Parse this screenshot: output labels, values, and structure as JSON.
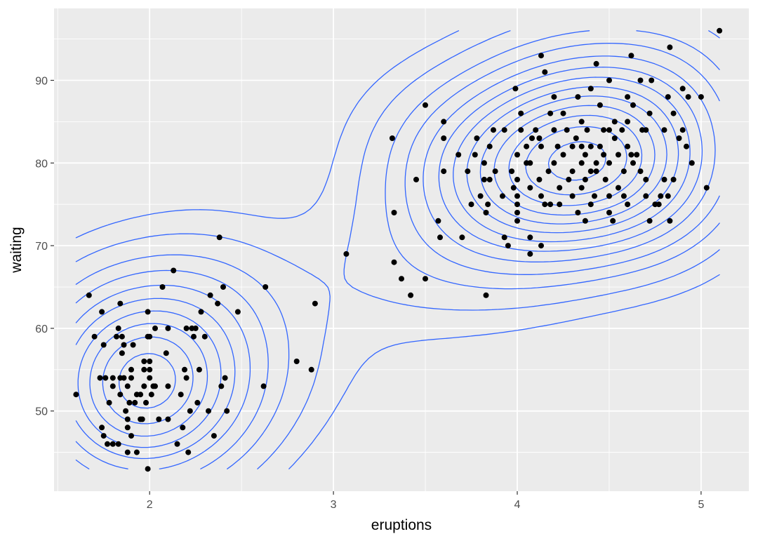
{
  "chart_data": {
    "type": "scatter",
    "title": "",
    "xlabel": "eruptions",
    "ylabel": "waiting",
    "xlim": [
      1.48,
      5.26
    ],
    "ylim": [
      40.3,
      98.7
    ],
    "x_ticks": [
      2,
      3,
      4,
      5
    ],
    "y_ticks": [
      50,
      60,
      70,
      80,
      90
    ],
    "grid": true,
    "legend": "none",
    "colors": {
      "points": "#000000",
      "contours": "#3366FF",
      "panel": "#EBEBEB",
      "grid": "#FFFFFF"
    },
    "density_peaks": [
      {
        "x": 4.35,
        "y": 80.2
      },
      {
        "x": 1.98,
        "y": 53.5
      }
    ],
    "points": [
      [
        1.6,
        52
      ],
      [
        1.67,
        64
      ],
      [
        1.7,
        59
      ],
      [
        1.73,
        54
      ],
      [
        1.74,
        62
      ],
      [
        1.75,
        58
      ],
      [
        1.74,
        48
      ],
      [
        1.75,
        47
      ],
      [
        1.76,
        54
      ],
      [
        1.77,
        46
      ],
      [
        1.78,
        51
      ],
      [
        1.8,
        53
      ],
      [
        1.8,
        54
      ],
      [
        1.8,
        46
      ],
      [
        1.82,
        59
      ],
      [
        1.83,
        60
      ],
      [
        1.83,
        46
      ],
      [
        1.84,
        63
      ],
      [
        1.84,
        52
      ],
      [
        1.84,
        54
      ],
      [
        1.85,
        59
      ],
      [
        1.85,
        57
      ],
      [
        1.86,
        58
      ],
      [
        1.86,
        54
      ],
      [
        1.87,
        50
      ],
      [
        1.88,
        53
      ],
      [
        1.88,
        45
      ],
      [
        1.88,
        48
      ],
      [
        1.88,
        49
      ],
      [
        1.89,
        51
      ],
      [
        1.9,
        55
      ],
      [
        1.9,
        54
      ],
      [
        1.9,
        47
      ],
      [
        1.91,
        58
      ],
      [
        1.92,
        51
      ],
      [
        1.93,
        52
      ],
      [
        1.93,
        45
      ],
      [
        1.95,
        49
      ],
      [
        1.95,
        52
      ],
      [
        1.96,
        49
      ],
      [
        1.97,
        53
      ],
      [
        1.97,
        56
      ],
      [
        1.97,
        55
      ],
      [
        1.98,
        51
      ],
      [
        1.99,
        59
      ],
      [
        1.99,
        62
      ],
      [
        1.99,
        43
      ],
      [
        2.0,
        59
      ],
      [
        2.0,
        56
      ],
      [
        2.0,
        55
      ],
      [
        2.0,
        54
      ],
      [
        2.01,
        52
      ],
      [
        2.02,
        53
      ],
      [
        2.03,
        60
      ],
      [
        2.03,
        53
      ],
      [
        2.05,
        49
      ],
      [
        2.07,
        65
      ],
      [
        2.09,
        57
      ],
      [
        2.1,
        53
      ],
      [
        2.1,
        60
      ],
      [
        2.1,
        49
      ],
      [
        2.13,
        67
      ],
      [
        2.15,
        46
      ],
      [
        2.17,
        52
      ],
      [
        2.18,
        48
      ],
      [
        2.19,
        55
      ],
      [
        2.2,
        54
      ],
      [
        2.2,
        60
      ],
      [
        2.21,
        45
      ],
      [
        2.22,
        50
      ],
      [
        2.23,
        60
      ],
      [
        2.24,
        59
      ],
      [
        2.25,
        60
      ],
      [
        2.26,
        51
      ],
      [
        2.27,
        55
      ],
      [
        2.28,
        62
      ],
      [
        2.3,
        59
      ],
      [
        2.32,
        50
      ],
      [
        2.33,
        64
      ],
      [
        2.35,
        47
      ],
      [
        2.37,
        63
      ],
      [
        2.38,
        71
      ],
      [
        2.39,
        53
      ],
      [
        2.4,
        65
      ],
      [
        2.41,
        54
      ],
      [
        2.42,
        50
      ],
      [
        2.48,
        62
      ],
      [
        2.62,
        53
      ],
      [
        2.63,
        65
      ],
      [
        2.8,
        56
      ],
      [
        2.88,
        55
      ],
      [
        2.9,
        63
      ],
      [
        3.07,
        69
      ],
      [
        3.32,
        83
      ],
      [
        3.33,
        74
      ],
      [
        3.33,
        68
      ],
      [
        3.37,
        66
      ],
      [
        3.42,
        64
      ],
      [
        3.45,
        78
      ],
      [
        3.5,
        66
      ],
      [
        3.5,
        87
      ],
      [
        3.57,
        73
      ],
      [
        3.58,
        71
      ],
      [
        3.6,
        85
      ],
      [
        3.6,
        83
      ],
      [
        3.6,
        79
      ],
      [
        3.68,
        81
      ],
      [
        3.7,
        71
      ],
      [
        3.73,
        79
      ],
      [
        3.75,
        75
      ],
      [
        3.77,
        81
      ],
      [
        3.78,
        83
      ],
      [
        3.8,
        76
      ],
      [
        3.82,
        80
      ],
      [
        3.82,
        78
      ],
      [
        3.83,
        74
      ],
      [
        3.83,
        64
      ],
      [
        3.84,
        75
      ],
      [
        3.85,
        78
      ],
      [
        3.85,
        82
      ],
      [
        3.87,
        84
      ],
      [
        3.88,
        79
      ],
      [
        3.92,
        76
      ],
      [
        3.93,
        71
      ],
      [
        3.93,
        84
      ],
      [
        3.95,
        70
      ],
      [
        3.97,
        79
      ],
      [
        3.98,
        77
      ],
      [
        3.99,
        89
      ],
      [
        4.0,
        76
      ],
      [
        4.0,
        78
      ],
      [
        4.0,
        74
      ],
      [
        4.0,
        81
      ],
      [
        4.0,
        73
      ],
      [
        4.0,
        75
      ],
      [
        4.02,
        84
      ],
      [
        4.02,
        86
      ],
      [
        4.05,
        82
      ],
      [
        4.05,
        80
      ],
      [
        4.07,
        77
      ],
      [
        4.07,
        80
      ],
      [
        4.07,
        71
      ],
      [
        4.07,
        69
      ],
      [
        4.08,
        83
      ],
      [
        4.1,
        84
      ],
      [
        4.12,
        83
      ],
      [
        4.12,
        78
      ],
      [
        4.13,
        93
      ],
      [
        4.13,
        82
      ],
      [
        4.13,
        76
      ],
      [
        4.13,
        70
      ],
      [
        4.15,
        91
      ],
      [
        4.15,
        75
      ],
      [
        4.17,
        79
      ],
      [
        4.18,
        86
      ],
      [
        4.18,
        75
      ],
      [
        4.2,
        84
      ],
      [
        4.2,
        88
      ],
      [
        4.2,
        80
      ],
      [
        4.22,
        82
      ],
      [
        4.23,
        77
      ],
      [
        4.23,
        75
      ],
      [
        4.25,
        81
      ],
      [
        4.25,
        86
      ],
      [
        4.27,
        84
      ],
      [
        4.28,
        78
      ],
      [
        4.3,
        82
      ],
      [
        4.3,
        79
      ],
      [
        4.3,
        76
      ],
      [
        4.32,
        83
      ],
      [
        4.33,
        74
      ],
      [
        4.33,
        88
      ],
      [
        4.35,
        77
      ],
      [
        4.35,
        80
      ],
      [
        4.35,
        82
      ],
      [
        4.35,
        85
      ],
      [
        4.37,
        78
      ],
      [
        4.37,
        73
      ],
      [
        4.37,
        81
      ],
      [
        4.38,
        84
      ],
      [
        4.4,
        75
      ],
      [
        4.4,
        79
      ],
      [
        4.4,
        89
      ],
      [
        4.4,
        82
      ],
      [
        4.42,
        76
      ],
      [
        4.43,
        80
      ],
      [
        4.43,
        92
      ],
      [
        4.43,
        79
      ],
      [
        4.45,
        82
      ],
      [
        4.45,
        87
      ],
      [
        4.47,
        84
      ],
      [
        4.47,
        81
      ],
      [
        4.48,
        78
      ],
      [
        4.5,
        90
      ],
      [
        4.5,
        84
      ],
      [
        4.5,
        80
      ],
      [
        4.5,
        76
      ],
      [
        4.5,
        74
      ],
      [
        4.52,
        73
      ],
      [
        4.53,
        85
      ],
      [
        4.53,
        83
      ],
      [
        4.55,
        77
      ],
      [
        4.55,
        81
      ],
      [
        4.57,
        84
      ],
      [
        4.58,
        76
      ],
      [
        4.58,
        79
      ],
      [
        4.6,
        85
      ],
      [
        4.6,
        88
      ],
      [
        4.6,
        82
      ],
      [
        4.6,
        75
      ],
      [
        4.62,
        93
      ],
      [
        4.62,
        81
      ],
      [
        4.63,
        87
      ],
      [
        4.63,
        80
      ],
      [
        4.65,
        81
      ],
      [
        4.67,
        79
      ],
      [
        4.67,
        90
      ],
      [
        4.68,
        84
      ],
      [
        4.7,
        84
      ],
      [
        4.7,
        78
      ],
      [
        4.7,
        76
      ],
      [
        4.72,
        86
      ],
      [
        4.72,
        73
      ],
      [
        4.73,
        90
      ],
      [
        4.75,
        75
      ],
      [
        4.77,
        75
      ],
      [
        4.78,
        76
      ],
      [
        4.8,
        84
      ],
      [
        4.8,
        78
      ],
      [
        4.82,
        88
      ],
      [
        4.82,
        76
      ],
      [
        4.83,
        73
      ],
      [
        4.83,
        94
      ],
      [
        4.85,
        78
      ],
      [
        4.85,
        86
      ],
      [
        4.88,
        83
      ],
      [
        4.9,
        84
      ],
      [
        4.9,
        89
      ],
      [
        4.92,
        82
      ],
      [
        4.93,
        88
      ],
      [
        4.95,
        80
      ],
      [
        5.0,
        88
      ],
      [
        5.03,
        77
      ],
      [
        5.1,
        96
      ]
    ]
  }
}
